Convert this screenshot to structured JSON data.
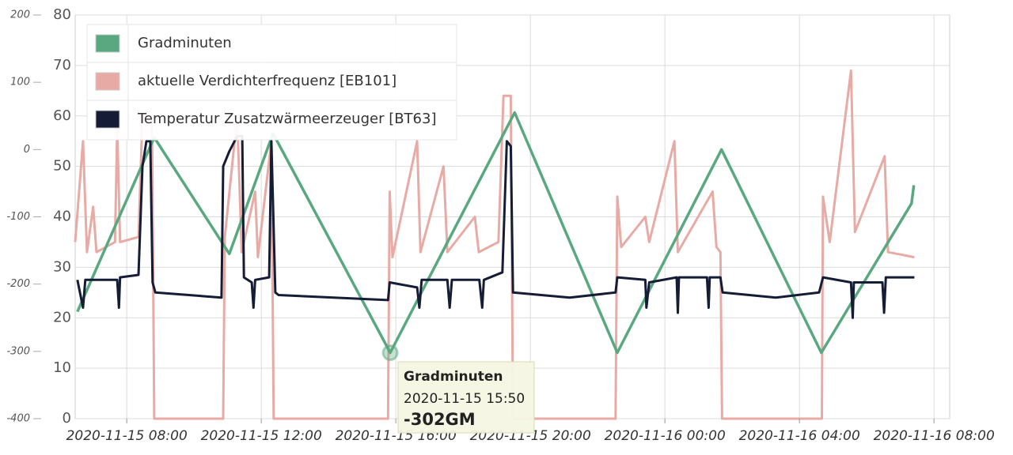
{
  "chart_data": {
    "type": "line",
    "xlim": [
      "2020-11-15 06:28",
      "2020-11-16 08:28"
    ],
    "xticks": [
      "2020-11-15 08:00",
      "2020-11-15 12:00",
      "2020-11-15 16:00",
      "2020-11-15 20:00",
      "2020-11-16 00:00",
      "2020-11-16 04:00",
      "2020-11-16 08:00"
    ],
    "ylim": [
      -400,
      200
    ],
    "yticks": [
      -400,
      -300,
      -200,
      -100,
      0,
      100,
      200
    ],
    "y2lim": [
      0,
      80
    ],
    "y2ticks": [
      0,
      10,
      20,
      30,
      40,
      50,
      60,
      70,
      80
    ],
    "grid": true,
    "legend": "top-left",
    "series": [
      {
        "name": "Gradminuten",
        "color": "#5aa87f",
        "x": [
          "2020-11-15 06:32",
          "2020-11-15 08:49",
          "2020-11-15 11:03",
          "2020-11-15 12:21",
          "2020-11-15 15:50",
          "2020-11-15 19:32",
          "2020-11-15 22:35",
          "2020-11-16 01:41",
          "2020-11-16 04:39",
          "2020-11-16 07:20",
          "2020-11-16 07:24"
        ],
        "values": [
          -241,
          18,
          -155,
          24,
          -302,
          55,
          -302,
          0,
          -302,
          -80,
          -53
        ]
      },
      {
        "name": "aktuelle Verdichterfrequenz [EB101]",
        "color": "#e8aaa5",
        "axis": "y2",
        "x": [
          "2020-11-15 06:28",
          "2020-11-15 06:42",
          "2020-11-15 06:49",
          "2020-11-15 07:00",
          "2020-11-15 07:06",
          "2020-11-15 07:39",
          "2020-11-15 07:43",
          "2020-11-15 07:48",
          "2020-11-15 08:21",
          "2020-11-15 08:28",
          "2020-11-15 08:45",
          "2020-11-15 08:49",
          "2020-11-15 10:52",
          "2020-11-15 10:55",
          "2020-11-15 11:17",
          "2020-11-15 11:25",
          "2020-11-15 11:49",
          "2020-11-15 11:54",
          "2020-11-15 12:18",
          "2020-11-15 12:22",
          "2020-11-15 15:46",
          "2020-11-15 15:49",
          "2020-11-15 15:54",
          "2020-11-15 16:38",
          "2020-11-15 16:44",
          "2020-11-15 17:25",
          "2020-11-15 17:32",
          "2020-11-15 18:21",
          "2020-11-15 18:28",
          "2020-11-15 19:03",
          "2020-11-15 19:12",
          "2020-11-15 19:25",
          "2020-11-15 19:29",
          "2020-11-15 22:32",
          "2020-11-15 22:35",
          "2020-11-15 22:42",
          "2020-11-15 23:25",
          "2020-11-15 23:32",
          "2020-11-16 00:17",
          "2020-11-16 00:23",
          "2020-11-16 01:25",
          "2020-11-16 01:32",
          "2020-11-16 01:39",
          "2020-11-16 01:42",
          "2020-11-16 04:40",
          "2020-11-16 04:42",
          "2020-11-16 04:54",
          "2020-11-16 05:32",
          "2020-11-16 05:39",
          "2020-11-16 06:32",
          "2020-11-16 06:38",
          "2020-11-16 07:25"
        ],
        "values": [
          35,
          55,
          33,
          42,
          33,
          35,
          58,
          35,
          36,
          60,
          60,
          0,
          0,
          36,
          60,
          33,
          45,
          32,
          55,
          0,
          0,
          45,
          32,
          55,
          33,
          50,
          33,
          40,
          33,
          35,
          64,
          64,
          0,
          0,
          44,
          34,
          40,
          35,
          55,
          33,
          45,
          34,
          33,
          0,
          0,
          44,
          35,
          69,
          37,
          52,
          33,
          32
        ]
      },
      {
        "name": "Temperatur Zusatzwärmeerzeuger [BT63]",
        "color": "#151c36",
        "axis": "y2",
        "x": [
          "2020-11-15 06:32",
          "2020-11-15 06:42",
          "2020-11-15 06:46",
          "2020-11-15 07:43",
          "2020-11-15 07:46",
          "2020-11-15 07:48",
          "2020-11-15 08:21",
          "2020-11-15 08:28",
          "2020-11-15 08:35",
          "2020-11-15 08:42",
          "2020-11-15 08:46",
          "2020-11-15 08:51",
          "2020-11-15 10:49",
          "2020-11-15 10:52",
          "2020-11-15 11:03",
          "2020-11-15 11:17",
          "2020-11-15 11:26",
          "2020-11-15 11:29",
          "2020-11-15 11:43",
          "2020-11-15 11:46",
          "2020-11-15 11:49",
          "2020-11-15 12:14",
          "2020-11-15 12:18",
          "2020-11-15 12:25",
          "2020-11-15 12:31",
          "2020-11-15 15:46",
          "2020-11-15 15:49",
          "2020-11-15 16:38",
          "2020-11-15 16:42",
          "2020-11-15 16:46",
          "2020-11-15 17:32",
          "2020-11-15 17:36",
          "2020-11-15 17:40",
          "2020-11-15 18:29",
          "2020-11-15 18:34",
          "2020-11-15 18:37",
          "2020-11-15 19:10",
          "2020-11-15 19:18",
          "2020-11-15 19:25",
          "2020-11-15 19:29",
          "2020-11-15 21:10",
          "2020-11-15 22:32",
          "2020-11-15 22:35",
          "2020-11-15 23:25",
          "2020-11-15 23:27",
          "2020-11-15 23:32",
          "2020-11-16 00:21",
          "2020-11-16 00:23",
          "2020-11-16 00:25",
          "2020-11-16 01:15",
          "2020-11-16 01:18",
          "2020-11-16 01:20",
          "2020-11-16 01:39",
          "2020-11-16 01:43",
          "2020-11-16 03:18",
          "2020-11-16 04:35",
          "2020-11-16 04:42",
          "2020-11-16 05:32",
          "2020-11-16 05:35",
          "2020-11-16 05:37",
          "2020-11-16 06:28",
          "2020-11-16 06:31",
          "2020-11-16 06:34",
          "2020-11-16 07:25"
        ],
        "values": [
          27.5,
          22,
          27.5,
          27.5,
          22,
          28,
          28.5,
          50,
          55,
          55,
          27,
          25,
          24,
          50,
          53,
          56,
          56,
          28,
          27,
          22,
          27.5,
          28,
          55,
          25,
          24.5,
          23.5,
          27,
          26,
          22,
          27.5,
          27.5,
          22,
          27.5,
          27.5,
          22,
          27.5,
          29,
          55,
          54,
          25,
          24,
          25,
          28,
          27.5,
          22,
          27,
          28,
          21,
          28,
          28,
          22,
          28,
          28,
          25,
          24,
          25,
          28,
          27,
          20,
          27,
          27,
          21,
          28,
          28
        ]
      }
    ],
    "tooltip": {
      "title": "Gradminuten",
      "date": "2020-11-15 15:50",
      "value": "-302GM"
    }
  }
}
